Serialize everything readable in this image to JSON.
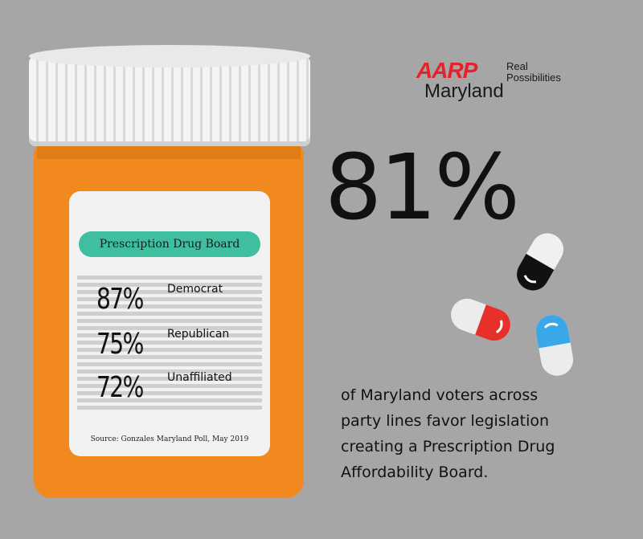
{
  "logo": {
    "brand": "AARP",
    "tagline_line1": "Real",
    "tagline_line2": "Possibilities",
    "state": "Maryland"
  },
  "headline": {
    "percent": "81%"
  },
  "description": {
    "line1": "of Maryland voters across",
    "line2": "party lines favor legislation",
    "line3": "creating a Prescription Drug",
    "line4": "Affordability Board."
  },
  "label": {
    "title": "Prescription Drug Board",
    "rows": [
      {
        "pct": "87%",
        "party": "Democrat"
      },
      {
        "pct": "75%",
        "party": "Republican"
      },
      {
        "pct": "72%",
        "party": "Unaffiliated"
      }
    ],
    "source": "Source: Gonzales Maryland Poll, May 2019"
  },
  "colors": {
    "background": "#a6a6a6",
    "bottle": "#f2891f",
    "label_pill": "#3fbf9f",
    "brand_red": "#e8202a"
  },
  "icons": [
    "pill-bottle-icon",
    "capsule-black-icon",
    "capsule-red-icon",
    "capsule-blue-icon"
  ]
}
